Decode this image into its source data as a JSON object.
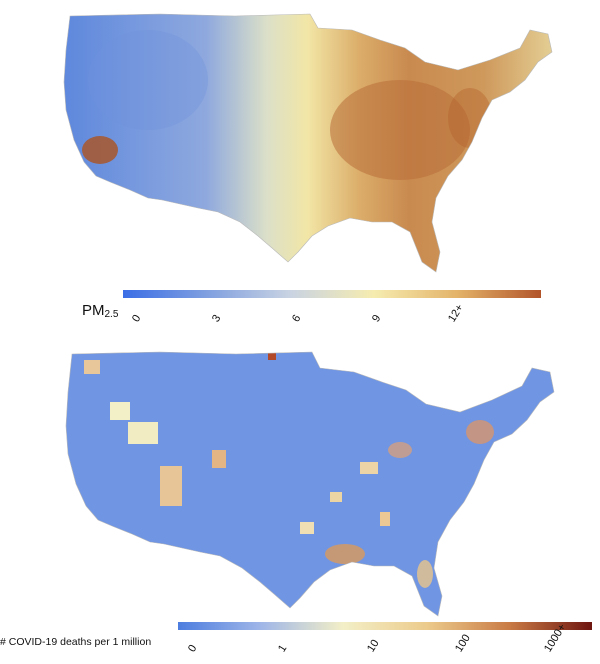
{
  "maps": [
    {
      "id": "pm25",
      "legend_title_main": "PM",
      "legend_title_sub": "2.5",
      "ticks": [
        "0",
        "3",
        "6",
        "9",
        "12+"
      ],
      "colors": [
        "#3b6ee6",
        "#7f9fe0",
        "#c9d3e2",
        "#f6ecb0",
        "#e3b369",
        "#b2542a"
      ]
    },
    {
      "id": "covid",
      "legend_title": "# COVID-19 deaths per 1 million",
      "ticks": [
        "0",
        "1",
        "10",
        "100",
        "1000+"
      ],
      "colors": [
        "#4c7ddf",
        "#9fb6e8",
        "#f3efc7",
        "#eccb8c",
        "#c97b45",
        "#6e1510"
      ]
    }
  ]
}
